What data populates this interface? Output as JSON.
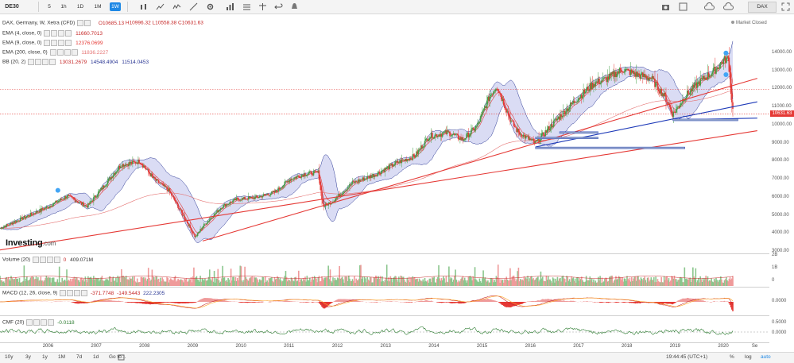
{
  "toolbar": {
    "symbol": "DE30",
    "intervals": [
      "5",
      "1h",
      "1D",
      "1M",
      "1W"
    ],
    "active_interval": "1W",
    "right_selector": "DAX"
  },
  "title": "DAX, Germany, W, Xetra (CFD)",
  "ohlc": {
    "o": "O10685.13",
    "h": "H10996.32",
    "l": "L10558.38",
    "c": "C10631.63"
  },
  "market_status": "Market Closed",
  "indicators": [
    {
      "label": "EMA (4, close, 0)",
      "value": "11660.7013",
      "color": "#c62828"
    },
    {
      "label": "EMA (9, close, 0)",
      "value": "12376.0699",
      "color": "#e53935"
    },
    {
      "label": "EMA (200, close, 0)",
      "value": "11836.2227",
      "color": "#e57373"
    },
    {
      "label": "BB (20, 2)",
      "values": [
        "13031.2679",
        "14548.4904",
        "11514.0453"
      ],
      "colors": [
        "#c62828",
        "#283593",
        "#283593"
      ]
    }
  ],
  "logo": {
    "brand": "Investing",
    "suffix": ".com"
  },
  "current_price": "10631.63",
  "price_axis": [
    "14000.00",
    "13000.00",
    "12000.00",
    "11000.00",
    "10000.00",
    "9000.00",
    "8000.00",
    "7000.00",
    "6000.00",
    "5000.00",
    "4000.00",
    "3000.00"
  ],
  "volume_panel": {
    "label": "Volume (20)",
    "value": "409.071M",
    "zero": "0",
    "axis": [
      "2B",
      "1B",
      "0"
    ]
  },
  "macd_panel": {
    "label": "MACD (12, 26, close, 9)",
    "values": [
      "-371.7748",
      "-149.5443",
      "222.2305"
    ],
    "axis": [
      "0.0000"
    ]
  },
  "cmf_panel": {
    "label": "CMF (20)",
    "value": "-0.0118",
    "axis": [
      "0.5000",
      "0.0000"
    ]
  },
  "time_axis": [
    "2006",
    "2007",
    "2008",
    "2009",
    "2010",
    "2011",
    "2012",
    "2013",
    "2014",
    "2015",
    "2016",
    "2017",
    "2018",
    "2019",
    "2020",
    "Se"
  ],
  "bottom_bar": {
    "ranges": [
      "10y",
      "3y",
      "1y",
      "1M",
      "7d",
      "1d",
      "Go to..."
    ],
    "clock": "19:44:45 (UTC+1)",
    "options": [
      "%",
      "log",
      "auto"
    ]
  },
  "colors": {
    "up": "#43a047",
    "down": "#e53935",
    "band_fill": "#cdd0f0",
    "band_line": "#283593",
    "trend_red": "#e53935",
    "trend_blue": "#1e3ab8"
  },
  "chart_data": {
    "type": "line",
    "title": "DAX, Germany, W, Xetra (CFD)",
    "ylim": [
      3000,
      15000
    ],
    "x": [
      2005.0,
      2005.5,
      2006.0,
      2006.4,
      2006.8,
      2007.2,
      2007.5,
      2007.9,
      2008.2,
      2008.5,
      2008.8,
      2009.05,
      2009.2,
      2009.6,
      2009.9,
      2010.3,
      2010.7,
      2011.0,
      2011.3,
      2011.6,
      2011.7,
      2011.9,
      2012.3,
      2012.8,
      2013.2,
      2013.6,
      2013.9,
      2014.3,
      2014.6,
      2014.9,
      2015.15,
      2015.3,
      2015.6,
      2015.75,
      2016.1,
      2016.5,
      2016.9,
      2017.3,
      2017.6,
      2017.9,
      2018.2,
      2018.5,
      2018.8,
      2018.95,
      2019.2,
      2019.5,
      2019.8,
      2020.0,
      2020.1,
      2020.15,
      2020.2
    ],
    "y": [
      4300,
      4900,
      5500,
      6100,
      5500,
      6800,
      7800,
      8000,
      7000,
      6400,
      5000,
      3800,
      4400,
      5500,
      5900,
      6000,
      6300,
      7000,
      7300,
      7400,
      5500,
      5800,
      6800,
      7300,
      7900,
      8300,
      9400,
      9600,
      9200,
      10000,
      11600,
      12200,
      10200,
      9600,
      9000,
      10200,
      11300,
      12300,
      12600,
      13100,
      12800,
      12600,
      11500,
      10600,
      11600,
      12400,
      13000,
      13600,
      13700,
      12000,
      10631
    ],
    "series": [
      {
        "name": "DAX",
        "type": "candlestick-close"
      },
      {
        "name": "EMA (4, close, 0)",
        "last": 11660.7013
      },
      {
        "name": "EMA (9, close, 0)",
        "last": 12376.0699
      },
      {
        "name": "EMA (200, close, 0)",
        "last": 11836.2227
      },
      {
        "name": "BB (20, 2)",
        "basis": 13031.2679,
        "upper": 14548.4904,
        "lower": 11514.0453
      }
    ],
    "trendlines": [
      {
        "color": "red",
        "from": [
          2009.2,
          3600
        ],
        "to": [
          2020.7,
          12600
        ]
      },
      {
        "color": "red",
        "from": [
          2005.0,
          3100
        ],
        "to": [
          2020.7,
          9700
        ]
      },
      {
        "color": "blue",
        "from": [
          2016.1,
          8800
        ],
        "to": [
          2020.7,
          11300
        ]
      },
      {
        "color": "blue",
        "from": [
          2018.95,
          10300
        ],
        "to": [
          2020.7,
          10400
        ]
      }
    ],
    "xlabel": "",
    "ylabel": "",
    "grid": false
  }
}
